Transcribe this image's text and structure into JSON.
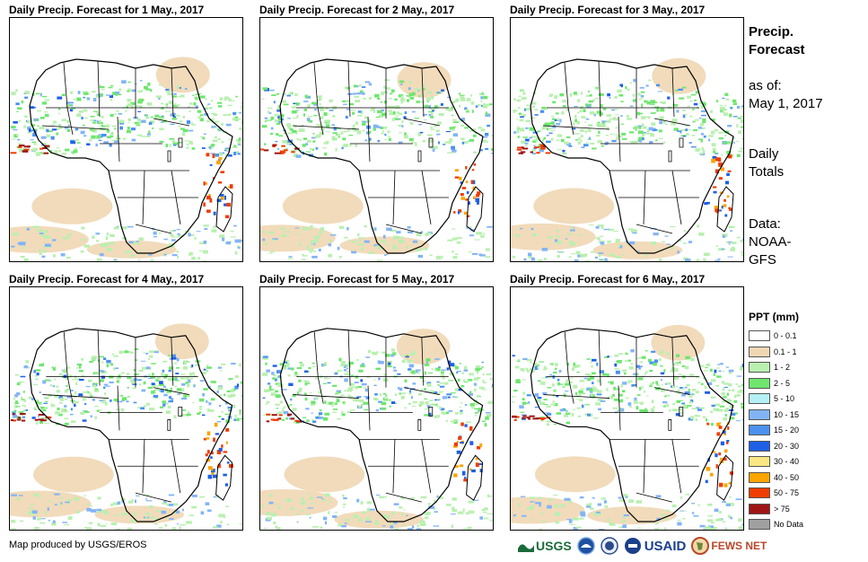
{
  "panels": [
    {
      "title": "Daily Precip. Forecast for 1 May., 2017"
    },
    {
      "title": "Daily Precip. Forecast for 2 May., 2017"
    },
    {
      "title": "Daily Precip. Forecast for 3 May., 2017"
    },
    {
      "title": "Daily Precip. Forecast for 4 May., 2017"
    },
    {
      "title": "Daily Precip. Forecast for 5 May., 2017"
    },
    {
      "title": "Daily Precip. Forecast for 6 May., 2017"
    }
  ],
  "sidebar": {
    "title_line1": "Precip.",
    "title_line2": "Forecast",
    "asof_label": "as of:",
    "asof_date": "May 1, 2017",
    "totals_line1": "Daily",
    "totals_line2": "Totals",
    "data_line1": "Data:",
    "data_line2": "NOAA-",
    "data_line3": "GFS"
  },
  "legend": {
    "title": "PPT (mm)",
    "items": [
      {
        "label": "0 - 0.1",
        "color": "#ffffff"
      },
      {
        "label": "0.1 - 1",
        "color": "#f0d7b4"
      },
      {
        "label": "1 - 2",
        "color": "#b9f0b0"
      },
      {
        "label": "2 - 5",
        "color": "#6ee66e"
      },
      {
        "label": "5 - 10",
        "color": "#b4f0f5"
      },
      {
        "label": "10 - 15",
        "color": "#82b4f5"
      },
      {
        "label": "15 - 20",
        "color": "#4b91f0"
      },
      {
        "label": "20 - 30",
        "color": "#1e5fe6"
      },
      {
        "label": "30 - 40",
        "color": "#fae682"
      },
      {
        "label": "40 - 50",
        "color": "#faa500"
      },
      {
        "label": "50 - 75",
        "color": "#f03c00"
      },
      {
        "label": "> 75",
        "color": "#a01414"
      },
      {
        "label": "No Data",
        "color": "#a0a0a0"
      }
    ]
  },
  "credit": "Map produced by USGS/EROS",
  "logos": {
    "usgs": "USGS",
    "usaid": "USAID",
    "fewsnet": "FEWS NET"
  }
}
